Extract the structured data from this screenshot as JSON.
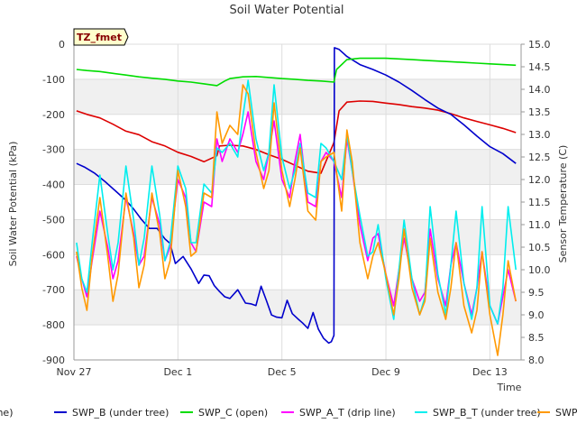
{
  "chart_data": {
    "type": "line",
    "title": "Soil Water Potential",
    "xlabel": "Time",
    "ylabel": "Soil Water Potential (kPa)",
    "y2label": "Sensor Temperature (C)",
    "tag": "TZ_fmet",
    "ylim": [
      -900,
      0
    ],
    "y2lim": [
      8.0,
      15.0
    ],
    "xlim": [
      0,
      17.2
    ],
    "x_unit": "days since Nov 27",
    "x_ticks": [
      {
        "x": 0,
        "label": "Nov 27"
      },
      {
        "x": 4,
        "label": "Dec 1"
      },
      {
        "x": 8,
        "label": "Dec 5"
      },
      {
        "x": 12,
        "label": "Dec 9"
      },
      {
        "x": 16,
        "label": "Dec 13"
      }
    ],
    "y_ticks": [
      0,
      -100,
      -200,
      -300,
      -400,
      -500,
      -600,
      -700,
      -800,
      -900
    ],
    "y2_ticks": [
      "8.0",
      "8.5",
      "9.0",
      "9.5",
      "10.0",
      "10.5",
      "11.0",
      "11.5",
      "12.0",
      "12.5",
      "13.0",
      "13.5",
      "14.0",
      "14.5",
      "15.0"
    ],
    "legend_position": "bottom",
    "series": [
      {
        "name": "SWP_A (drip line)",
        "color": "#dd0000",
        "axis": "left",
        "x": [
          0.1,
          0.5,
          1.0,
          1.5,
          2.0,
          2.5,
          3.0,
          3.5,
          4.0,
          4.5,
          5.0,
          5.5,
          5.6,
          6.0,
          6.5,
          7.0,
          7.5,
          8.0,
          8.5,
          9.0,
          9.5,
          10.0,
          10.2,
          10.5,
          11.0,
          11.5,
          12.0,
          12.5,
          13.0,
          13.5,
          14.0,
          14.5,
          15.0,
          15.5,
          16.0,
          16.5,
          17.0
        ],
        "y": [
          -190,
          -200,
          -210,
          -228,
          -248,
          -258,
          -278,
          -290,
          -308,
          -320,
          -335,
          -318,
          -290,
          -288,
          -290,
          -300,
          -315,
          -328,
          -345,
          -362,
          -368,
          -280,
          -190,
          -165,
          -162,
          -163,
          -168,
          -172,
          -178,
          -182,
          -188,
          -198,
          -210,
          -220,
          -230,
          -240,
          -252
        ]
      },
      {
        "name": "SWP_B (under tree)",
        "color": "#0000cc",
        "axis": "left",
        "x": [
          0.1,
          0.4,
          0.8,
          1.2,
          1.6,
          2.0,
          2.3,
          2.6,
          2.9,
          3.2,
          3.5,
          3.7,
          3.9,
          4.2,
          4.5,
          4.8,
          5.0,
          5.2,
          5.4,
          5.6,
          5.8,
          6.0,
          6.3,
          6.6,
          6.8,
          7.0,
          7.2,
          7.4,
          7.6,
          7.8,
          8.0,
          8.2,
          8.4,
          8.6,
          8.8,
          9.0,
          9.2,
          9.4,
          9.6,
          9.8,
          9.9,
          10.0,
          10.02,
          10.2,
          10.5,
          11.0,
          11.5,
          12.0,
          12.5,
          13.0,
          13.5,
          14.0,
          14.5,
          15.0,
          15.5,
          16.0,
          16.5,
          17.0
        ],
        "y": [
          -340,
          -350,
          -368,
          -392,
          -418,
          -445,
          -470,
          -500,
          -525,
          -525,
          -555,
          -568,
          -625,
          -605,
          -640,
          -682,
          -658,
          -660,
          -688,
          -705,
          -720,
          -725,
          -700,
          -738,
          -740,
          -745,
          -690,
          -730,
          -772,
          -778,
          -780,
          -730,
          -768,
          -782,
          -795,
          -810,
          -765,
          -812,
          -838,
          -852,
          -848,
          -830,
          -10,
          -15,
          -35,
          -58,
          -72,
          -88,
          -108,
          -132,
          -158,
          -182,
          -200,
          -230,
          -262,
          -292,
          -312,
          -340
        ]
      },
      {
        "name": "SWP_C (open)",
        "color": "#00dd00",
        "axis": "left",
        "x": [
          0.1,
          0.5,
          1.0,
          1.5,
          2.0,
          2.5,
          3.0,
          3.5,
          4.0,
          4.5,
          5.0,
          5.5,
          5.8,
          6.0,
          6.5,
          7.0,
          7.5,
          8.0,
          8.5,
          9.0,
          9.5,
          10.0,
          10.1,
          10.5,
          11.0,
          11.5,
          12.0,
          12.5,
          13.0,
          13.5,
          14.0,
          14.5,
          15.0,
          15.5,
          16.0,
          16.5,
          17.0
        ],
        "y": [
          -72,
          -75,
          -78,
          -83,
          -88,
          -93,
          -97,
          -100,
          -105,
          -108,
          -113,
          -118,
          -105,
          -98,
          -93,
          -92,
          -95,
          -98,
          -100,
          -103,
          -105,
          -108,
          -72,
          -44,
          -40,
          -40,
          -40,
          -42,
          -44,
          -46,
          -48,
          -50,
          -52,
          -54,
          -56,
          -58,
          -60
        ]
      },
      {
        "name": "SWP_A_T (drip line)",
        "color": "#ff00ff",
        "axis": "right",
        "x": [
          0.1,
          0.3,
          0.5,
          0.7,
          1.0,
          1.3,
          1.5,
          1.7,
          2.0,
          2.3,
          2.5,
          2.7,
          3.0,
          3.3,
          3.5,
          3.7,
          4.0,
          4.3,
          4.5,
          4.7,
          5.0,
          5.3,
          5.5,
          5.7,
          6.0,
          6.3,
          6.5,
          6.7,
          7.0,
          7.3,
          7.5,
          7.7,
          8.0,
          8.3,
          8.5,
          8.7,
          9.0,
          9.3,
          9.5,
          9.7,
          10.0,
          10.3,
          10.5,
          10.7,
          11.0,
          11.3,
          11.5,
          11.7,
          12.0,
          12.3,
          12.5,
          12.7,
          13.0,
          13.3,
          13.5,
          13.7,
          14.0,
          14.3,
          14.5,
          14.7,
          15.0,
          15.3,
          15.5,
          15.7,
          16.0,
          16.3,
          16.5,
          16.7,
          17.0
        ],
        "y": [
          10.3,
          9.8,
          9.4,
          10.2,
          11.3,
          10.5,
          9.8,
          10.2,
          11.6,
          10.8,
          10.1,
          10.3,
          11.6,
          11.0,
          10.2,
          10.5,
          12.0,
          11.6,
          10.6,
          10.4,
          11.5,
          11.4,
          12.9,
          12.4,
          12.9,
          12.6,
          13.0,
          13.5,
          12.4,
          12.0,
          12.6,
          13.3,
          12.0,
          11.6,
          12.4,
          13.0,
          11.5,
          11.4,
          12.4,
          12.6,
          12.4,
          11.6,
          12.9,
          12.2,
          11.0,
          10.2,
          10.7,
          10.8,
          9.9,
          9.2,
          10.0,
          10.7,
          9.8,
          9.3,
          9.5,
          10.9,
          9.8,
          9.2,
          10.1,
          10.6,
          9.7,
          9.0,
          9.6,
          10.4,
          9.2,
          8.8,
          9.4,
          10.0,
          9.3
        ]
      },
      {
        "name": "SWP_B_T (under tree)",
        "color": "#00eeee",
        "axis": "right",
        "x": [
          0.1,
          0.3,
          0.5,
          0.7,
          1.0,
          1.3,
          1.5,
          1.7,
          2.0,
          2.3,
          2.5,
          2.7,
          3.0,
          3.3,
          3.5,
          3.7,
          4.0,
          4.3,
          4.5,
          4.7,
          5.0,
          5.3,
          5.5,
          5.7,
          6.0,
          6.3,
          6.5,
          6.7,
          7.0,
          7.3,
          7.5,
          7.7,
          8.0,
          8.3,
          8.5,
          8.7,
          9.0,
          9.3,
          9.5,
          9.7,
          10.0,
          10.3,
          10.5,
          10.7,
          11.0,
          11.3,
          11.5,
          11.7,
          12.0,
          12.3,
          12.5,
          12.7,
          13.0,
          13.3,
          13.5,
          13.7,
          14.0,
          14.3,
          14.5,
          14.7,
          15.0,
          15.3,
          15.5,
          15.7,
          16.0,
          16.3,
          16.5,
          16.7,
          17.0
        ],
        "y": [
          10.6,
          9.8,
          9.5,
          10.6,
          12.1,
          10.8,
          10.0,
          10.6,
          12.3,
          11.1,
          10.1,
          10.7,
          12.3,
          11.2,
          10.2,
          10.6,
          12.3,
          11.8,
          10.6,
          10.6,
          11.9,
          11.7,
          12.7,
          12.6,
          12.8,
          12.5,
          13.4,
          14.2,
          12.9,
          12.2,
          12.6,
          14.1,
          12.5,
          11.8,
          12.2,
          12.8,
          11.7,
          11.6,
          12.8,
          12.7,
          12.4,
          12.0,
          13.0,
          12.2,
          11.2,
          10.3,
          10.4,
          11.0,
          9.8,
          8.9,
          10.0,
          11.1,
          9.8,
          9.0,
          9.4,
          11.4,
          9.9,
          9.0,
          10.1,
          11.3,
          9.7,
          8.9,
          9.6,
          11.4,
          9.2,
          8.8,
          9.6,
          11.4,
          10.0
        ]
      },
      {
        "name": "SWP_C_T (open)",
        "color": "#ff9900",
        "axis": "right",
        "x": [
          0.1,
          0.3,
          0.5,
          0.7,
          1.0,
          1.3,
          1.5,
          1.7,
          2.0,
          2.3,
          2.5,
          2.7,
          3.0,
          3.3,
          3.5,
          3.7,
          4.0,
          4.3,
          4.5,
          4.7,
          5.0,
          5.3,
          5.5,
          5.7,
          6.0,
          6.3,
          6.5,
          6.7,
          7.0,
          7.3,
          7.5,
          7.7,
          8.0,
          8.3,
          8.5,
          8.7,
          9.0,
          9.3,
          9.5,
          9.7,
          10.0,
          10.3,
          10.5,
          10.7,
          11.0,
          11.3,
          11.5,
          11.7,
          12.0,
          12.3,
          12.5,
          12.7,
          13.0,
          13.3,
          13.5,
          13.7,
          14.0,
          14.3,
          14.5,
          14.7,
          15.0,
          15.3,
          15.5,
          15.7,
          16.0,
          16.3,
          16.5,
          16.7,
          17.0
        ],
        "y": [
          10.4,
          9.6,
          9.1,
          10.3,
          11.6,
          10.3,
          9.3,
          9.9,
          11.7,
          10.7,
          9.6,
          10.1,
          11.7,
          10.8,
          9.8,
          10.2,
          12.2,
          11.4,
          10.3,
          10.4,
          11.7,
          11.6,
          13.5,
          12.8,
          13.2,
          13.0,
          14.1,
          13.9,
          12.6,
          11.8,
          12.2,
          13.7,
          12.2,
          11.4,
          12.0,
          12.7,
          11.3,
          11.1,
          12.4,
          12.5,
          12.6,
          11.3,
          13.1,
          12.4,
          10.6,
          9.8,
          10.3,
          10.6,
          9.9,
          9.0,
          9.8,
          10.9,
          9.6,
          9.0,
          9.3,
          10.7,
          9.5,
          8.9,
          9.6,
          10.6,
          9.2,
          8.6,
          9.1,
          10.4,
          9.0,
          8.1,
          9.0,
          10.2,
          9.3
        ]
      }
    ]
  }
}
